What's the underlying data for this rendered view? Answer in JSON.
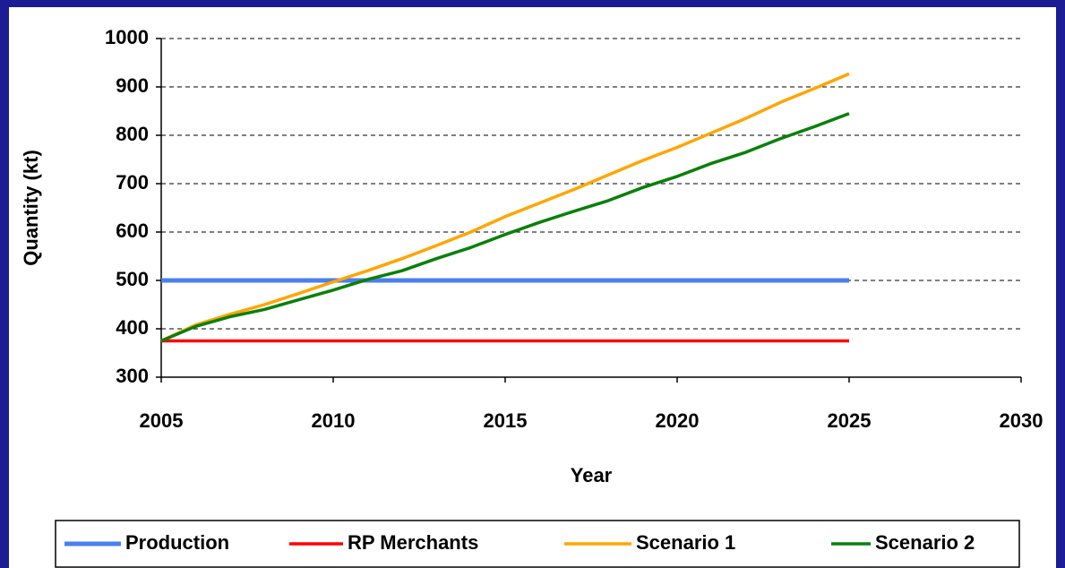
{
  "chart_data": {
    "type": "line",
    "x_label": "Year",
    "y_label": "Quantity (kt)",
    "xlim": [
      2005,
      2030
    ],
    "xticks": [
      2005,
      2010,
      2015,
      2020,
      2025,
      2030
    ],
    "ylim": [
      300,
      1000
    ],
    "yticks": [
      300,
      400,
      500,
      600,
      700,
      800,
      900,
      1000
    ],
    "grid": true,
    "legend": "bottom",
    "x": [
      2005,
      2006,
      2007,
      2008,
      2009,
      2010,
      2011,
      2012,
      2013,
      2014,
      2015,
      2016,
      2017,
      2018,
      2019,
      2020,
      2021,
      2022,
      2023,
      2024,
      2025
    ],
    "series": [
      {
        "name": "Production",
        "color": "#4a7fef",
        "values": [
          500,
          500,
          500,
          500,
          500,
          500,
          500,
          500,
          500,
          500,
          500,
          500,
          500,
          500,
          500,
          500,
          500,
          500,
          500,
          500,
          500
        ]
      },
      {
        "name": "RP Merchants",
        "color": "#ff0000",
        "values": [
          375,
          375,
          375,
          375,
          375,
          375,
          375,
          375,
          375,
          375,
          375,
          375,
          375,
          375,
          375,
          375,
          375,
          375,
          375,
          375,
          375
        ]
      },
      {
        "name": "Scenario 1",
        "color": "#ffa500",
        "values": [
          375,
          408,
          430,
          450,
          473,
          497,
          520,
          545,
          572,
          600,
          632,
          660,
          688,
          718,
          748,
          775,
          805,
          835,
          868,
          897,
          927
        ]
      },
      {
        "name": "Scenario 2",
        "color": "#0a800a",
        "values": [
          375,
          405,
          425,
          440,
          460,
          480,
          502,
          520,
          545,
          568,
          595,
          620,
          643,
          665,
          692,
          715,
          742,
          765,
          793,
          818,
          845
        ]
      }
    ]
  }
}
